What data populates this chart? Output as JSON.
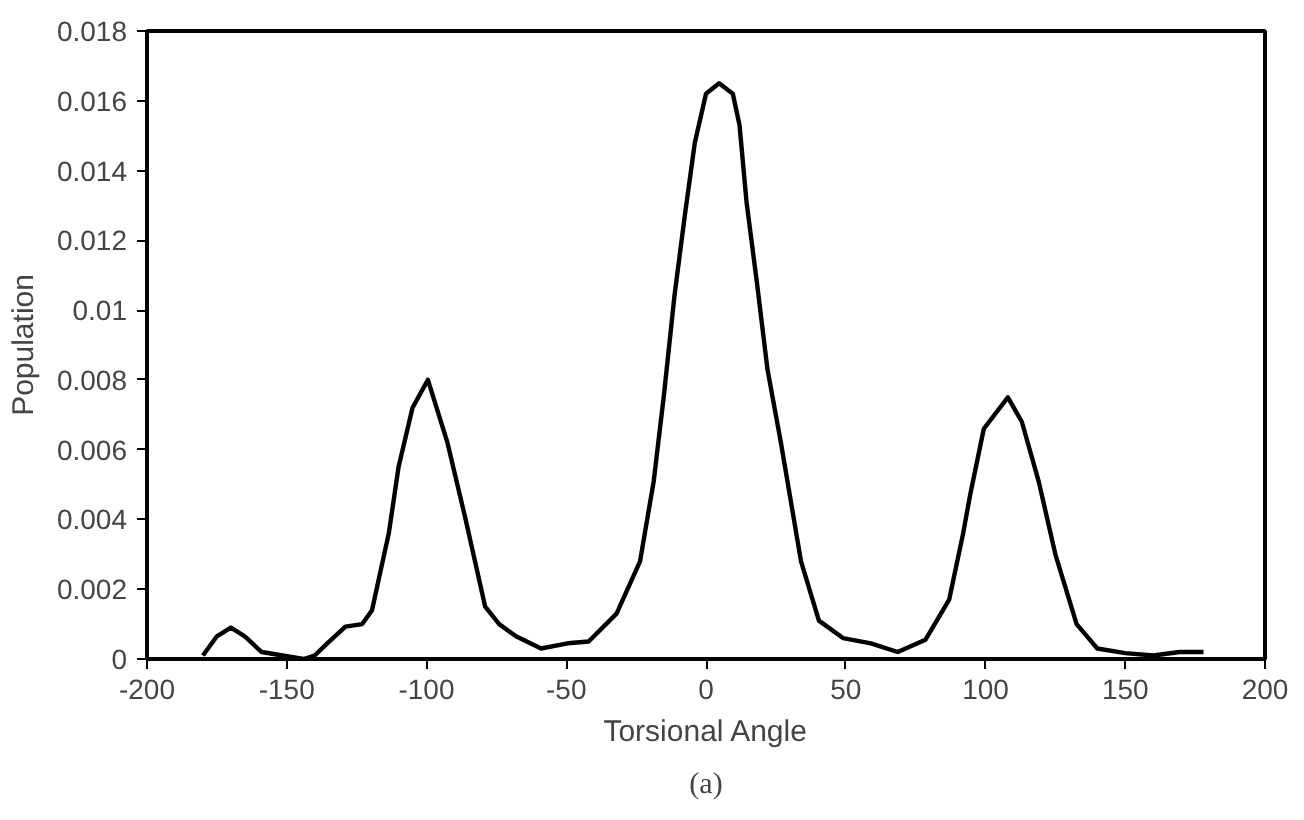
{
  "chart_data": {
    "type": "line",
    "xlabel": "Torsional Angle",
    "ylabel": "Population",
    "annotations": [
      "(a)"
    ],
    "grid": false,
    "marker": "none",
    "line_style": "solid",
    "xlim": [
      -200,
      200
    ],
    "xticks": [
      -200,
      -150,
      -100,
      -50,
      0,
      50,
      100,
      150,
      200
    ],
    "ylim": [
      0,
      0.018
    ],
    "yticks": [
      0,
      0.002,
      0.004,
      0.006,
      0.008,
      0.01,
      0.012,
      0.014,
      0.016,
      0.018
    ],
    "series": [
      {
        "color": "#000000",
        "x": [
          -180,
          -175,
          -170,
          -165,
          -159,
          -151.5,
          -144,
          -140,
          -135.5,
          -129,
          -123,
          -119.5,
          -113.5,
          -110,
          -105,
          -99.5,
          -92.5,
          -86,
          -79,
          -74,
          -68,
          -59,
          -49.5,
          -42,
          -32,
          -23.6,
          -18.7,
          -15,
          -11.3,
          -7.6,
          -4,
          0,
          4.7,
          9.6,
          12,
          14.5,
          18.2,
          22,
          26.8,
          34,
          40.4,
          49,
          59,
          68.6,
          78.5,
          87,
          92,
          94.5,
          99.4,
          108,
          113,
          119,
          125,
          132.6,
          140,
          150,
          160,
          169.5,
          178
        ],
        "values": [
          0.0001,
          0.00065,
          0.0009,
          0.00065,
          0.0002,
          0.0001,
          0,
          0.0001,
          0.00045,
          0.00093,
          0.001,
          0.0014,
          0.0036,
          0.0055,
          0.0072,
          0.008,
          0.0062,
          0.004,
          0.0015,
          0.001,
          0.00065,
          0.0003,
          0.00045,
          0.0005,
          0.0013,
          0.0028,
          0.0051,
          0.0076,
          0.0104,
          0.0127,
          0.0148,
          0.0162,
          0.0165,
          0.0162,
          0.0153,
          0.0131,
          0.0108,
          0.0083,
          0.0062,
          0.0028,
          0.0011,
          0.0006,
          0.00045,
          0.0002,
          0.00055,
          0.0017,
          0.0036,
          0.0047,
          0.0066,
          0.0075,
          0.0068,
          0.0051,
          0.003,
          0.001,
          0.0003,
          0.00017,
          0.0001,
          0.0002,
          0.0002
        ]
      }
    ]
  }
}
